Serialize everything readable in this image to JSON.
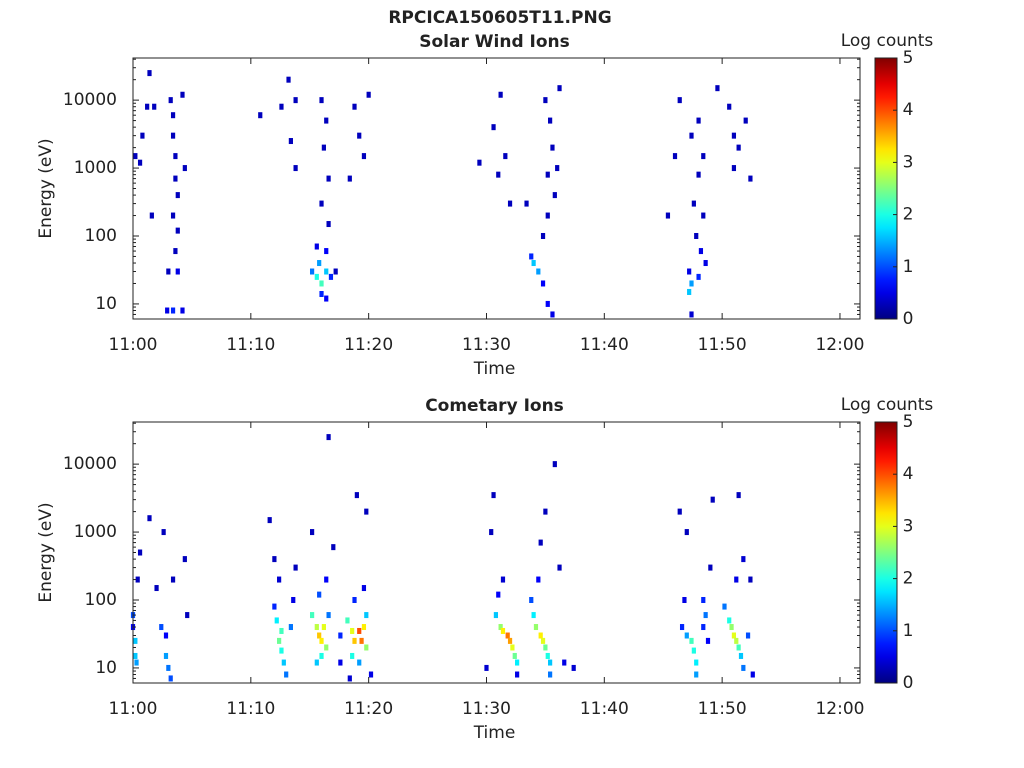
{
  "chart_data": [
    {
      "type": "spectrogram",
      "suptitle": "RPCICA150605T11.PNG",
      "title": "Solar Wind Ions",
      "xlabel": "Time",
      "ylabel": "Energy (eV)",
      "xlim": [
        0,
        61.7
      ],
      "xticks": [
        {
          "value": 0,
          "label": "11:00"
        },
        {
          "value": 10,
          "label": "11:10"
        },
        {
          "value": 20,
          "label": "11:20"
        },
        {
          "value": 30,
          "label": "11:30"
        },
        {
          "value": 40,
          "label": "11:40"
        },
        {
          "value": 50,
          "label": "11:50"
        },
        {
          "value": 60,
          "label": "12:00"
        }
      ],
      "ylim": [
        6,
        41700
      ],
      "yticks": [
        10,
        100,
        1000,
        10000
      ],
      "yscale": "log",
      "colormap": "jet",
      "colorbar": {
        "label": "Log counts",
        "clim": [
          0,
          5
        ],
        "cticks": [
          0,
          1,
          2,
          3,
          4,
          5
        ]
      },
      "cells": [
        [
          3.4,
          6000,
          0.3
        ],
        [
          3.4,
          3000,
          0.3
        ],
        [
          3.6,
          1500,
          0.3
        ],
        [
          3.6,
          700,
          0.3
        ],
        [
          3.8,
          400,
          0.3
        ],
        [
          3.4,
          200,
          0.3
        ],
        [
          3.8,
          120,
          0.3
        ],
        [
          3.6,
          60,
          0.3
        ],
        [
          3.8,
          30,
          0.5
        ],
        [
          3.0,
          30,
          0.3
        ],
        [
          2.9,
          8,
          0.5
        ],
        [
          3.4,
          8,
          0.8
        ],
        [
          4.2,
          8,
          0.5
        ],
        [
          4.2,
          12000,
          0.3
        ],
        [
          4.4,
          1000,
          0.3
        ],
        [
          3.2,
          10000,
          0.3
        ],
        [
          1.4,
          25000,
          0.3
        ],
        [
          1.2,
          8000,
          0.3
        ],
        [
          0.2,
          1500,
          0.3
        ],
        [
          0.8,
          3000,
          0.3
        ],
        [
          1.8,
          8000,
          0.3
        ],
        [
          1.6,
          200,
          0.3
        ],
        [
          0.6,
          1200,
          0.3
        ],
        [
          10.8,
          6000,
          0.3
        ],
        [
          12.6,
          8000,
          0.3
        ],
        [
          13.2,
          20000,
          0.3
        ],
        [
          13.8,
          10000,
          0.3
        ],
        [
          13.4,
          2500,
          0.3
        ],
        [
          13.8,
          1000,
          0.3
        ],
        [
          16.0,
          10000,
          0.3
        ],
        [
          16.4,
          5000,
          0.3
        ],
        [
          16.2,
          2000,
          0.3
        ],
        [
          16.6,
          700,
          0.3
        ],
        [
          16.0,
          300,
          0.3
        ],
        [
          16.6,
          150,
          0.3
        ],
        [
          15.6,
          70,
          0.5
        ],
        [
          16.4,
          60,
          0.6
        ],
        [
          15.2,
          30,
          1.2
        ],
        [
          15.6,
          25,
          2.0
        ],
        [
          16.0,
          20,
          2.2
        ],
        [
          16.4,
          30,
          1.6
        ],
        [
          16.8,
          25,
          0.8
        ],
        [
          16.0,
          14,
          0.8
        ],
        [
          16.4,
          12,
          0.6
        ],
        [
          15.8,
          40,
          1.4
        ],
        [
          17.2,
          30,
          0.3
        ],
        [
          18.8,
          8000,
          0.3
        ],
        [
          19.2,
          3000,
          0.3
        ],
        [
          19.6,
          1500,
          0.3
        ],
        [
          18.4,
          700,
          0.3
        ],
        [
          20.0,
          12000,
          0.3
        ],
        [
          29.4,
          1200,
          0.3
        ],
        [
          30.6,
          4000,
          0.3
        ],
        [
          31.6,
          1500,
          0.3
        ],
        [
          31.0,
          800,
          0.3
        ],
        [
          35.0,
          10000,
          0.3
        ],
        [
          35.4,
          5000,
          0.3
        ],
        [
          35.6,
          2000,
          0.3
        ],
        [
          35.2,
          800,
          0.3
        ],
        [
          35.8,
          400,
          0.3
        ],
        [
          35.2,
          200,
          0.3
        ],
        [
          34.8,
          100,
          0.3
        ],
        [
          33.8,
          50,
          0.8
        ],
        [
          34.0,
          40,
          1.6
        ],
        [
          34.4,
          30,
          1.4
        ],
        [
          34.8,
          20,
          0.6
        ],
        [
          35.2,
          10,
          0.6
        ],
        [
          35.6,
          7,
          0.5
        ],
        [
          36.0,
          1000,
          0.3
        ],
        [
          33.4,
          300,
          0.3
        ],
        [
          32.0,
          300,
          0.3
        ],
        [
          31.2,
          12000,
          0.3
        ],
        [
          36.2,
          15000,
          0.3
        ],
        [
          46.4,
          10000,
          0.3
        ],
        [
          47.4,
          3000,
          0.3
        ],
        [
          48.0,
          5000,
          0.3
        ],
        [
          48.4,
          1500,
          0.3
        ],
        [
          48.0,
          800,
          0.3
        ],
        [
          47.6,
          300,
          0.3
        ],
        [
          48.4,
          200,
          0.3
        ],
        [
          47.8,
          100,
          0.3
        ],
        [
          48.2,
          60,
          0.5
        ],
        [
          48.6,
          40,
          0.5
        ],
        [
          47.2,
          30,
          0.5
        ],
        [
          47.4,
          20,
          1.4
        ],
        [
          47.2,
          15,
          1.6
        ],
        [
          48.0,
          25,
          0.8
        ],
        [
          47.4,
          7,
          0.4
        ],
        [
          49.6,
          15000,
          0.3
        ],
        [
          50.6,
          8000,
          0.3
        ],
        [
          51.0,
          3000,
          0.3
        ],
        [
          52.0,
          5000,
          0.3
        ],
        [
          51.4,
          2000,
          0.3
        ],
        [
          51.0,
          1000,
          0.3
        ],
        [
          52.4,
          700,
          0.3
        ],
        [
          46.0,
          1500,
          0.3
        ],
        [
          45.4,
          200,
          0.3
        ]
      ]
    },
    {
      "type": "spectrogram",
      "title": "Cometary Ions",
      "xlabel": "Time",
      "ylabel": "Energy (eV)",
      "xlim": [
        0,
        61.7
      ],
      "xticks": [
        {
          "value": 0,
          "label": "11:00"
        },
        {
          "value": 10,
          "label": "11:10"
        },
        {
          "value": 20,
          "label": "11:20"
        },
        {
          "value": 30,
          "label": "11:30"
        },
        {
          "value": 40,
          "label": "11:40"
        },
        {
          "value": 50,
          "label": "11:50"
        },
        {
          "value": 60,
          "label": "12:00"
        }
      ],
      "ylim": [
        6,
        41700
      ],
      "yticks": [
        10,
        100,
        1000,
        10000
      ],
      "yscale": "log",
      "colormap": "jet",
      "colorbar": {
        "label": "Log counts",
        "clim": [
          0,
          5
        ],
        "cticks": [
          0,
          1,
          2,
          3,
          4,
          5
        ]
      },
      "cells": [
        [
          0.0,
          40,
          0.6
        ],
        [
          0.2,
          25,
          1.6
        ],
        [
          0.2,
          15,
          1.6
        ],
        [
          0.0,
          60,
          1.0
        ],
        [
          0.3,
          12,
          1.4
        ],
        [
          2.4,
          40,
          1.0
        ],
        [
          2.8,
          30,
          0.6
        ],
        [
          2.8,
          15,
          1.4
        ],
        [
          3.0,
          10,
          1.2
        ],
        [
          3.2,
          7,
          1.0
        ],
        [
          1.4,
          1600,
          0.3
        ],
        [
          2.6,
          1000,
          0.3
        ],
        [
          0.6,
          500,
          0.3
        ],
        [
          3.4,
          200,
          0.3
        ],
        [
          4.4,
          400,
          0.3
        ],
        [
          2.0,
          150,
          0.3
        ],
        [
          4.6,
          60,
          0.3
        ],
        [
          0.4,
          200,
          0.3
        ],
        [
          11.6,
          1500,
          0.3
        ],
        [
          12.0,
          400,
          0.3
        ],
        [
          12.4,
          200,
          0.4
        ],
        [
          12.0,
          80,
          0.8
        ],
        [
          12.2,
          50,
          1.8
        ],
        [
          12.6,
          35,
          2.2
        ],
        [
          12.4,
          25,
          2.4
        ],
        [
          12.6,
          18,
          2.0
        ],
        [
          12.8,
          12,
          1.6
        ],
        [
          13.0,
          8,
          1.2
        ],
        [
          13.4,
          40,
          1.2
        ],
        [
          13.6,
          100,
          0.5
        ],
        [
          13.8,
          300,
          0.3
        ],
        [
          15.2,
          60,
          2.2
        ],
        [
          15.6,
          40,
          2.8
        ],
        [
          15.8,
          30,
          3.4
        ],
        [
          16.2,
          40,
          3.0
        ],
        [
          16.0,
          25,
          3.2
        ],
        [
          16.4,
          20,
          2.6
        ],
        [
          16.0,
          15,
          2.0
        ],
        [
          15.6,
          12,
          1.6
        ],
        [
          16.6,
          60,
          1.2
        ],
        [
          15.8,
          120,
          1.0
        ],
        [
          16.4,
          200,
          0.6
        ],
        [
          16.6,
          25000,
          0.3
        ],
        [
          15.2,
          1000,
          0.3
        ],
        [
          17.0,
          600,
          0.3
        ],
        [
          17.6,
          30,
          0.8
        ],
        [
          17.6,
          12,
          0.5
        ],
        [
          18.2,
          50,
          2.2
        ],
        [
          18.6,
          35,
          3.0
        ],
        [
          18.8,
          25,
          3.4
        ],
        [
          19.2,
          35,
          4.0
        ],
        [
          19.4,
          25,
          3.8
        ],
        [
          19.6,
          40,
          3.2
        ],
        [
          19.8,
          20,
          2.6
        ],
        [
          18.6,
          15,
          2.0
        ],
        [
          19.2,
          12,
          1.4
        ],
        [
          19.8,
          60,
          1.6
        ],
        [
          18.8,
          100,
          0.8
        ],
        [
          19.6,
          150,
          0.5
        ],
        [
          19.0,
          3500,
          0.3
        ],
        [
          19.8,
          2000,
          0.3
        ],
        [
          20.2,
          8,
          0.5
        ],
        [
          18.4,
          7,
          0.4
        ],
        [
          30.8,
          60,
          1.6
        ],
        [
          31.2,
          40,
          2.6
        ],
        [
          31.4,
          35,
          3.2
        ],
        [
          31.8,
          30,
          3.8
        ],
        [
          32.0,
          25,
          3.6
        ],
        [
          32.2,
          20,
          3.0
        ],
        [
          32.4,
          15,
          2.4
        ],
        [
          32.6,
          12,
          1.8
        ],
        [
          31.0,
          120,
          0.6
        ],
        [
          31.4,
          200,
          0.4
        ],
        [
          30.6,
          3500,
          0.3
        ],
        [
          30.4,
          1000,
          0.3
        ],
        [
          30.0,
          10,
          0.4
        ],
        [
          32.6,
          8,
          0.5
        ],
        [
          33.8,
          100,
          1.0
        ],
        [
          34.0,
          60,
          1.8
        ],
        [
          34.2,
          40,
          2.6
        ],
        [
          34.6,
          30,
          3.2
        ],
        [
          34.8,
          25,
          3.0
        ],
        [
          35.0,
          20,
          2.4
        ],
        [
          35.2,
          15,
          2.0
        ],
        [
          35.4,
          12,
          1.6
        ],
        [
          35.4,
          8,
          1.2
        ],
        [
          34.4,
          200,
          0.6
        ],
        [
          34.6,
          700,
          0.3
        ],
        [
          35.0,
          2000,
          0.3
        ],
        [
          35.8,
          10000,
          0.3
        ],
        [
          36.2,
          300,
          0.3
        ],
        [
          36.6,
          12,
          0.5
        ],
        [
          37.4,
          10,
          0.4
        ],
        [
          46.4,
          2000,
          0.3
        ],
        [
          47.0,
          1000,
          0.3
        ],
        [
          46.8,
          100,
          0.5
        ],
        [
          46.6,
          40,
          0.8
        ],
        [
          47.0,
          30,
          1.4
        ],
        [
          47.4,
          25,
          2.2
        ],
        [
          47.6,
          18,
          2.0
        ],
        [
          47.8,
          12,
          1.8
        ],
        [
          47.8,
          8,
          1.4
        ],
        [
          48.4,
          100,
          0.8
        ],
        [
          48.6,
          60,
          1.2
        ],
        [
          48.4,
          40,
          0.8
        ],
        [
          48.8,
          25,
          0.6
        ],
        [
          49.2,
          3000,
          0.3
        ],
        [
          49.0,
          300,
          0.3
        ],
        [
          50.2,
          80,
          1.2
        ],
        [
          50.6,
          50,
          2.0
        ],
        [
          50.8,
          40,
          2.6
        ],
        [
          51.0,
          30,
          3.0
        ],
        [
          51.2,
          25,
          2.8
        ],
        [
          51.4,
          20,
          2.2
        ],
        [
          51.6,
          15,
          1.6
        ],
        [
          51.8,
          10,
          1.2
        ],
        [
          51.2,
          200,
          0.5
        ],
        [
          51.8,
          400,
          0.4
        ],
        [
          52.4,
          200,
          0.3
        ],
        [
          51.4,
          3500,
          0.3
        ],
        [
          52.6,
          8,
          0.5
        ],
        [
          52.2,
          30,
          1.0
        ]
      ]
    }
  ]
}
